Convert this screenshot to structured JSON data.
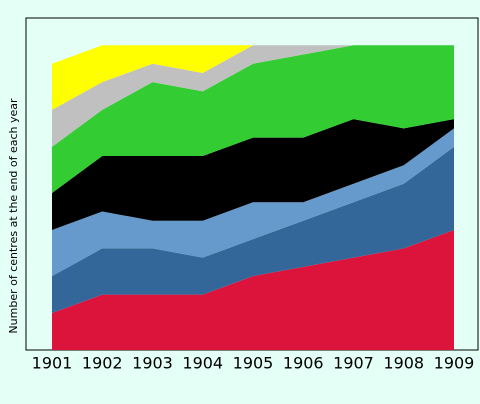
{
  "chart_data": {
    "type": "stacked-area",
    "y_label": "Number of centres at the end of each year",
    "categories": [
      "1901",
      "1902",
      "1903",
      "1904",
      "1905",
      "1906",
      "1907",
      "1908",
      "1909"
    ],
    "ylim": [
      0,
      34
    ],
    "series": [
      {
        "color": "#dc143c",
        "values": [
          4,
          6,
          6,
          6,
          8,
          9,
          10,
          11,
          13
        ]
      },
      {
        "color": "#336699",
        "values": [
          4,
          5,
          5,
          4,
          4,
          5,
          6,
          7,
          9
        ]
      },
      {
        "color": "#6699cc",
        "values": [
          5,
          4,
          3,
          4,
          4,
          2,
          2,
          2,
          2
        ]
      },
      {
        "color": "#000000",
        "values": [
          4,
          6,
          7,
          7,
          7,
          7,
          7,
          4,
          1
        ]
      },
      {
        "color": "#33cc33",
        "values": [
          5,
          5,
          8,
          7,
          8,
          9,
          8,
          9,
          8
        ]
      },
      {
        "color": "#c0c0c0",
        "values": [
          4,
          3,
          2,
          2,
          2,
          1,
          0,
          0,
          0
        ]
      },
      {
        "color": "#ffff00",
        "values": [
          5,
          4,
          2,
          3,
          0,
          0,
          0,
          0,
          0
        ]
      }
    ]
  }
}
